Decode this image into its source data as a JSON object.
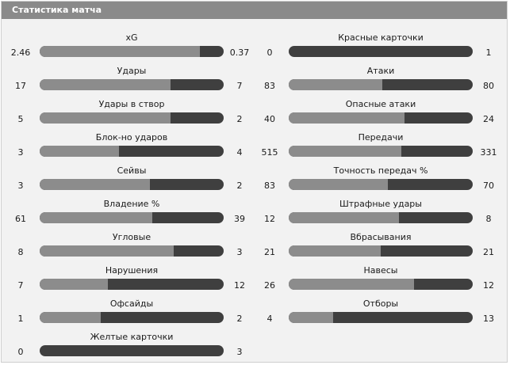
{
  "header": {
    "title": "Статистика матча"
  },
  "colors": {
    "home_bar": "#8c8c8c",
    "away_bar": "#3f3f3f",
    "header_bg": "#8a8a8a",
    "panel_bg": "#f2f2f2"
  },
  "left_stats": [
    {
      "label": "xG",
      "home": "2.46",
      "away": "0.37",
      "home_share": 0.87
    },
    {
      "label": "Удары",
      "home": "17",
      "away": "7",
      "home_share": 0.71
    },
    {
      "label": "Удары в створ",
      "home": "5",
      "away": "2",
      "home_share": 0.71
    },
    {
      "label": "Блок-но ударов",
      "home": "3",
      "away": "4",
      "home_share": 0.43
    },
    {
      "label": "Сейвы",
      "home": "3",
      "away": "2",
      "home_share": 0.6
    },
    {
      "label": "Владение %",
      "home": "61",
      "away": "39",
      "home_share": 0.61
    },
    {
      "label": "Угловые",
      "home": "8",
      "away": "3",
      "home_share": 0.73
    },
    {
      "label": "Нарушения",
      "home": "7",
      "away": "12",
      "home_share": 0.37
    },
    {
      "label": "Офсайды",
      "home": "1",
      "away": "2",
      "home_share": 0.33
    },
    {
      "label": "Желтые карточки",
      "home": "0",
      "away": "3",
      "home_share": 0.0
    }
  ],
  "right_stats": [
    {
      "label": "Красные карточки",
      "home": "0",
      "away": "1",
      "home_share": 0.0
    },
    {
      "label": "Атаки",
      "home": "83",
      "away": "80",
      "home_share": 0.51
    },
    {
      "label": "Опасные атаки",
      "home": "40",
      "away": "24",
      "home_share": 0.63
    },
    {
      "label": "Передачи",
      "home": "515",
      "away": "331",
      "home_share": 0.61
    },
    {
      "label": "Точность передач %",
      "home": "83",
      "away": "70",
      "home_share": 0.54
    },
    {
      "label": "Штрафные удары",
      "home": "12",
      "away": "8",
      "home_share": 0.6
    },
    {
      "label": "Вбрасывания",
      "home": "21",
      "away": "21",
      "home_share": 0.5
    },
    {
      "label": "Навесы",
      "home": "26",
      "away": "12",
      "home_share": 0.68
    },
    {
      "label": "Отборы",
      "home": "4",
      "away": "13",
      "home_share": 0.24
    }
  ]
}
